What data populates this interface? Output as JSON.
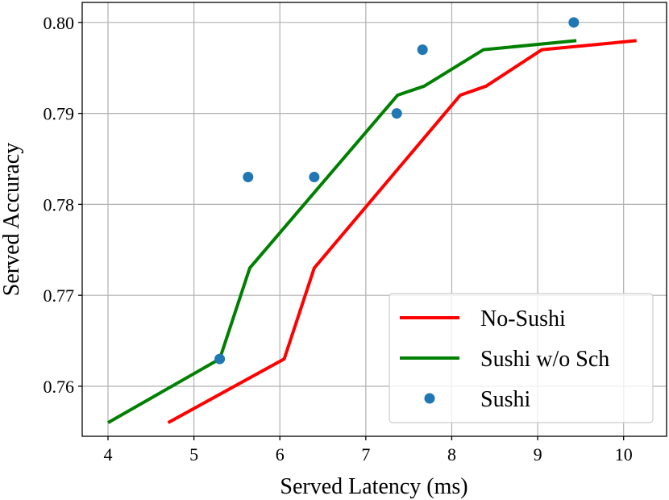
{
  "chart_data": {
    "type": "line",
    "xlabel": "Served Latency (ms)",
    "ylabel": "Served Accuracy",
    "xlim": [
      3.7,
      10.5
    ],
    "ylim": [
      0.7545,
      0.8022
    ],
    "xticks": [
      4,
      5,
      6,
      7,
      8,
      9,
      10
    ],
    "yticks": [
      0.76,
      0.77,
      0.78,
      0.79,
      0.8
    ],
    "xtick_labels": [
      "4",
      "5",
      "6",
      "7",
      "8",
      "9",
      "10"
    ],
    "ytick_labels": [
      "0.76",
      "0.77",
      "0.78",
      "0.79",
      "0.80"
    ],
    "grid": true,
    "legend_position": "lower-right",
    "series": [
      {
        "name": "No-Sushi",
        "type": "line",
        "color": "#ff0000",
        "x": [
          4.7,
          6.05,
          6.4,
          8.1,
          8.4,
          9.05,
          10.15
        ],
        "y": [
          0.756,
          0.763,
          0.773,
          0.792,
          0.793,
          0.797,
          0.798
        ]
      },
      {
        "name": "Sushi w/o Sch",
        "type": "line",
        "color": "#008000",
        "x": [
          4.0,
          5.3,
          5.65,
          7.37,
          7.68,
          8.37,
          9.45
        ],
        "y": [
          0.756,
          0.763,
          0.773,
          0.792,
          0.793,
          0.797,
          0.798
        ]
      },
      {
        "name": "Sushi",
        "type": "scatter",
        "color": "#1f77b4",
        "x": [
          5.3,
          5.63,
          6.4,
          7.36,
          7.66,
          9.42
        ],
        "y": [
          0.763,
          0.783,
          0.783,
          0.79,
          0.797,
          0.8
        ]
      }
    ]
  }
}
